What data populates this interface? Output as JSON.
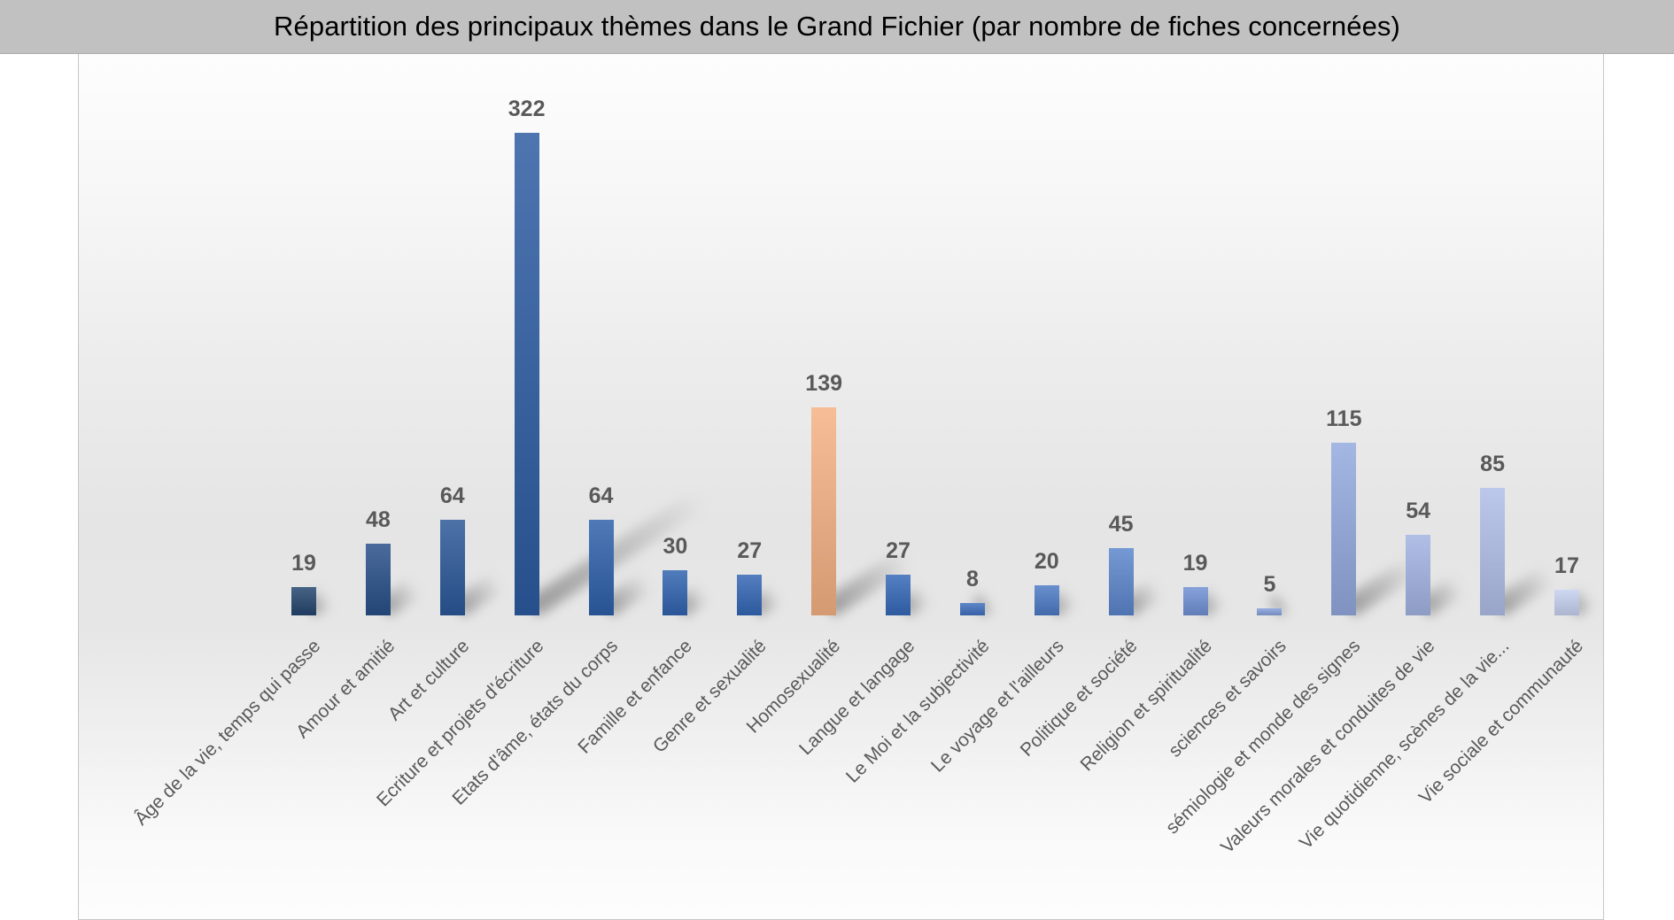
{
  "title": "Répartition des principaux thèmes dans le Grand Fichier (par nombre de fiches concernées)",
  "chart_data": {
    "type": "bar",
    "title": "Répartition des principaux thèmes dans le Grand Fichier (par nombre de fiches concernées)",
    "categories": [
      "Âge de la vie, temps qui passe",
      "Amour et amitié",
      "Art et culture",
      "Ecriture et projets d'écriture",
      "Etats d'âme, états du corps",
      "Famille et enfance",
      "Genre et sexualité",
      "Homosexualité",
      "Langue et langage",
      "Le Moi et la subjectivité",
      "Le voyage et l'ailleurs",
      "Politique et société",
      "Religion et spiritualité",
      "sciences et savoirs",
      "sémiologie et monde des signes",
      "Valeurs morales et conduites de vie",
      "Vie quotidienne, scènes de la vie...",
      "Vie sociale et communauté"
    ],
    "values": [
      19,
      48,
      64,
      322,
      64,
      30,
      27,
      139,
      27,
      8,
      20,
      45,
      19,
      5,
      115,
      54,
      85,
      17
    ],
    "bar_colors": [
      "#24456E",
      "#274F88",
      "#2A5798",
      "#2C5BA1",
      "#2E5FA9",
      "#3063AF",
      "#3366B4",
      "#F4B183",
      "#3568B8",
      "#3F70BE",
      "#4C7AC5",
      "#5B85CC",
      "#7090D4",
      "#86A0DA",
      "#93A8DD",
      "#A2B3E2",
      "#AFBEE7",
      "#C5D0EE"
    ],
    "highlight_index": 7,
    "highlight_color": "#F4B183",
    "xlabel": "",
    "ylabel": "",
    "ylim": [
      0,
      322
    ],
    "grid": false,
    "legend": false,
    "value_labels": true,
    "x_label_rotation_deg": 45
  },
  "style": {
    "title_bg": "#c1c1c1",
    "title_color": "#000000",
    "label_color": "#595959",
    "value_label_color": "#595959",
    "chart_border": "#c6c6c6",
    "shadow_color": "rgba(95,95,95,0.55)"
  }
}
